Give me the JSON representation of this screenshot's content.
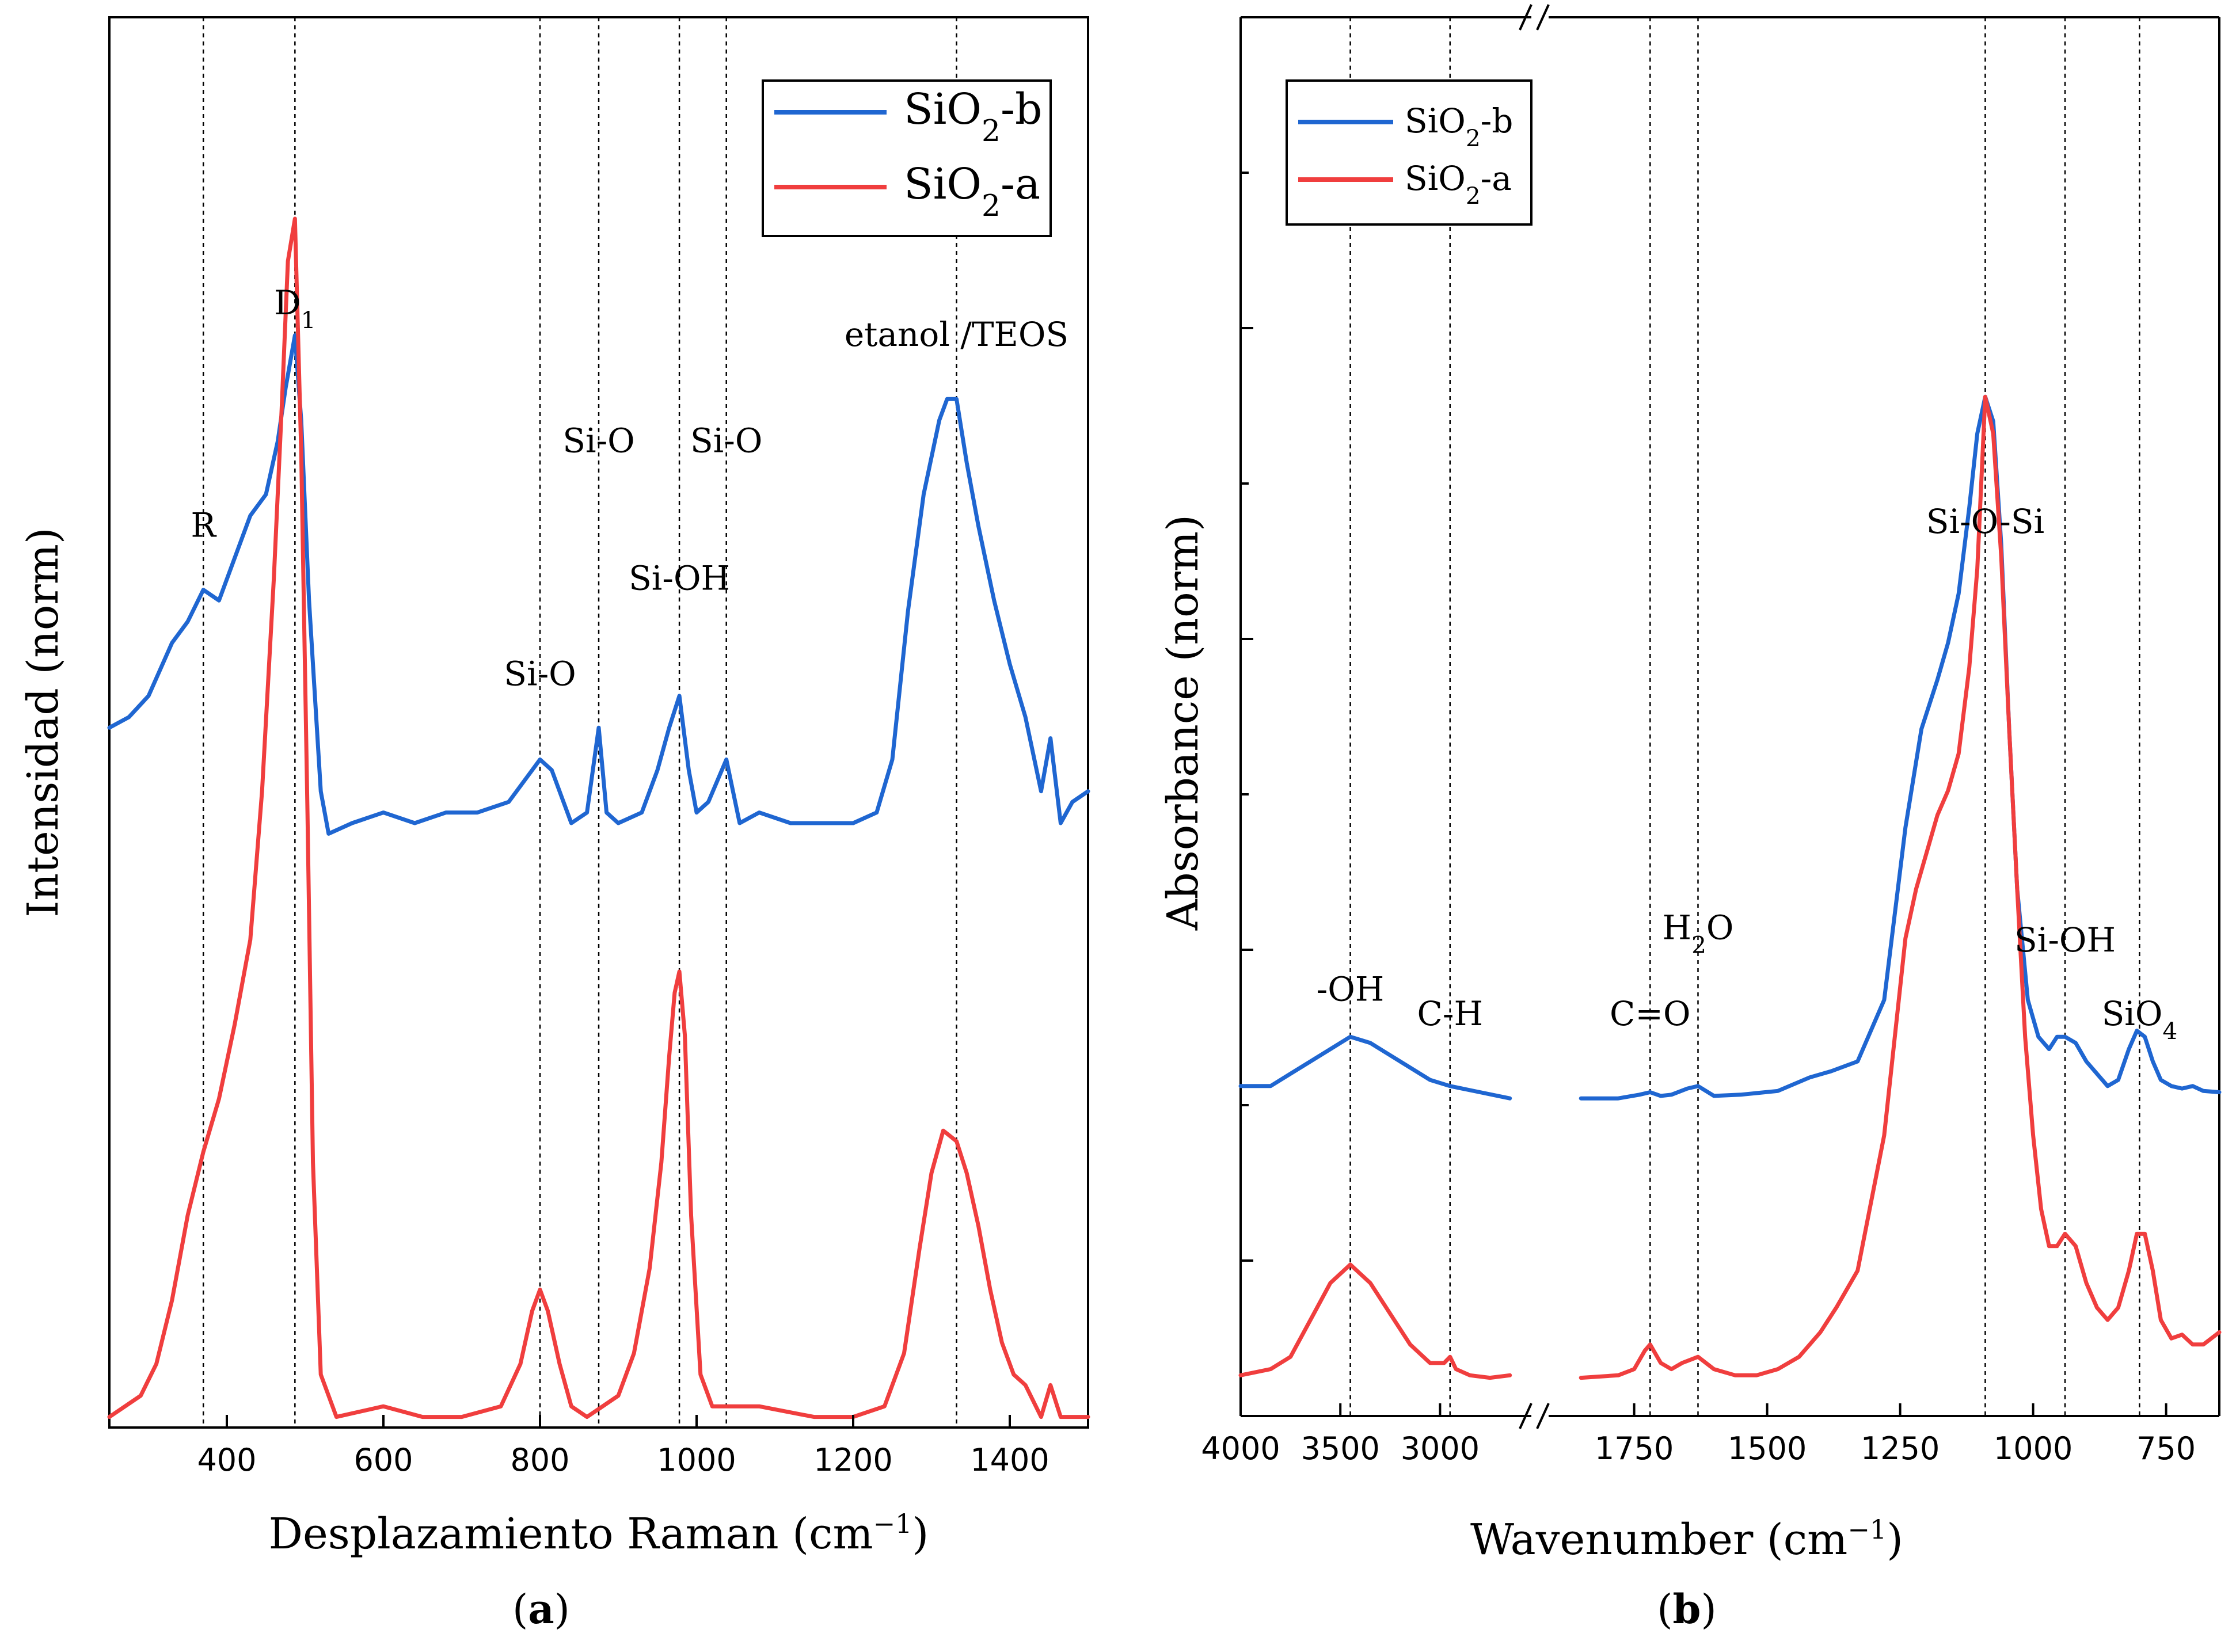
{
  "chart_data": [
    {
      "type": "line",
      "panel": "a",
      "panel_label": "a",
      "xlabel": "Desplazamiento Raman (cm",
      "xlabel_sup": "−1",
      "ylabel": "Intensidad (norm)",
      "xlim": [
        250,
        1500
      ],
      "ylim": [
        0,
        1.33
      ],
      "xticks": [
        400,
        600,
        800,
        1000,
        1200,
        1400
      ],
      "guides": [
        370,
        487,
        800,
        875,
        978,
        1038,
        1332
      ],
      "legend": [
        {
          "base": "SiO",
          "sub": "2",
          "suffix": "-b",
          "color": "#1f66d1"
        },
        {
          "base": "SiO",
          "sub": "2",
          "suffix": "-a",
          "color": "#f03e3e"
        }
      ],
      "annotations": [
        {
          "text": "R",
          "x": 370,
          "y": 0.84
        },
        {
          "text": "D",
          "sub": "1",
          "x": 487,
          "y": 1.05
        },
        {
          "text": "Si-O",
          "x": 800,
          "y": 0.7
        },
        {
          "text": "Si-O",
          "x": 875,
          "y": 0.92
        },
        {
          "text": "Si-OH",
          "x": 978,
          "y": 0.79
        },
        {
          "text": "Si-O",
          "x": 1038,
          "y": 0.92
        },
        {
          "text": "etanol /TEOS",
          "x": 1332,
          "y": 1.02
        }
      ],
      "series": [
        {
          "name": "SiO2-b",
          "color": "#1f66d1",
          "x": [
            250,
            275,
            300,
            330,
            350,
            370,
            390,
            410,
            430,
            450,
            465,
            475,
            487,
            495,
            505,
            520,
            530,
            560,
            600,
            640,
            680,
            720,
            760,
            790,
            800,
            815,
            840,
            860,
            875,
            885,
            900,
            930,
            950,
            965,
            978,
            990,
            1000,
            1015,
            1038,
            1055,
            1080,
            1120,
            1160,
            1200,
            1230,
            1250,
            1270,
            1290,
            1310,
            1320,
            1332,
            1345,
            1360,
            1380,
            1400,
            1420,
            1440,
            1452,
            1465,
            1480,
            1500
          ],
          "y": [
            0.66,
            0.67,
            0.69,
            0.74,
            0.76,
            0.79,
            0.78,
            0.82,
            0.86,
            0.88,
            0.93,
            0.98,
            1.03,
            0.95,
            0.78,
            0.6,
            0.56,
            0.57,
            0.58,
            0.57,
            0.58,
            0.58,
            0.59,
            0.62,
            0.63,
            0.62,
            0.57,
            0.58,
            0.66,
            0.58,
            0.57,
            0.58,
            0.62,
            0.66,
            0.69,
            0.62,
            0.58,
            0.59,
            0.63,
            0.57,
            0.58,
            0.57,
            0.57,
            0.57,
            0.58,
            0.63,
            0.77,
            0.88,
            0.95,
            0.97,
            0.97,
            0.91,
            0.85,
            0.78,
            0.72,
            0.67,
            0.6,
            0.65,
            0.57,
            0.59,
            0.6
          ]
        },
        {
          "name": "SiO2-a",
          "color": "#f03e3e",
          "x": [
            250,
            270,
            290,
            310,
            330,
            350,
            370,
            390,
            410,
            430,
            445,
            460,
            470,
            478,
            487,
            495,
            503,
            510,
            520,
            540,
            600,
            650,
            700,
            750,
            775,
            790,
            800,
            810,
            825,
            840,
            860,
            880,
            900,
            920,
            940,
            955,
            965,
            972,
            978,
            985,
            993,
            1005,
            1020,
            1040,
            1080,
            1150,
            1200,
            1240,
            1265,
            1285,
            1300,
            1315,
            1332,
            1345,
            1360,
            1375,
            1390,
            1405,
            1420,
            1440,
            1452,
            1465,
            1480,
            1500
          ],
          "y": [
            0.01,
            0.02,
            0.03,
            0.06,
            0.12,
            0.2,
            0.26,
            0.31,
            0.38,
            0.46,
            0.6,
            0.8,
            0.96,
            1.1,
            1.14,
            0.92,
            0.58,
            0.25,
            0.05,
            0.01,
            0.02,
            0.01,
            0.01,
            0.02,
            0.06,
            0.11,
            0.13,
            0.11,
            0.06,
            0.02,
            0.01,
            0.02,
            0.03,
            0.07,
            0.15,
            0.25,
            0.35,
            0.41,
            0.43,
            0.37,
            0.2,
            0.05,
            0.02,
            0.02,
            0.02,
            0.01,
            0.01,
            0.02,
            0.07,
            0.17,
            0.24,
            0.28,
            0.27,
            0.24,
            0.19,
            0.13,
            0.08,
            0.05,
            0.04,
            0.01,
            0.04,
            0.01,
            0.01,
            0.01
          ]
        }
      ]
    },
    {
      "type": "line",
      "panel": "b",
      "panel_label": "b",
      "xlabel": "Wavenumber (cm",
      "xlabel_sup": "−1",
      "ylabel": "Absorbance (norm)",
      "x_reversed": true,
      "broken_axis": {
        "left_segment": [
          4000,
          2600
        ],
        "right_segment": [
          1900,
          650
        ]
      },
      "ylim": [
        0,
        1.0
      ],
      "xticks": [
        4000,
        3500,
        3000,
        1750,
        1500,
        1250,
        1000,
        750
      ],
      "guides": [
        3450,
        2950,
        1720,
        1630,
        1090,
        940,
        800
      ],
      "legend": [
        {
          "base": "SiO",
          "sub": "2",
          "suffix": "-b",
          "color": "#1f66d1"
        },
        {
          "base": "SiO",
          "sub": "2",
          "suffix": "-a",
          "color": "#f03e3e"
        }
      ],
      "annotations": [
        {
          "text": "-OH",
          "x": 3450,
          "y": 0.3
        },
        {
          "text": "C-H",
          "x": 2950,
          "y": 0.28
        },
        {
          "text": "C=O",
          "x": 1720,
          "y": 0.28
        },
        {
          "text": "H",
          "sub": "2",
          "suffix": "O",
          "x": 1630,
          "y": 0.35
        },
        {
          "text": "Si-O-Si",
          "x": 1090,
          "y": 0.68
        },
        {
          "text": "Si-OH",
          "x": 940,
          "y": 0.34
        },
        {
          "text": "SiO",
          "sub": "4",
          "x": 800,
          "y": 0.28
        }
      ],
      "series": [
        {
          "name": "SiO2-b",
          "color": "#1f66d1",
          "segments": [
            {
              "x": [
                4000,
                3850,
                3750,
                3650,
                3550,
                3450,
                3350,
                3200,
                3050,
                2950,
                2800,
                2650
              ],
              "y": [
                0.24,
                0.24,
                0.25,
                0.26,
                0.27,
                0.28,
                0.275,
                0.26,
                0.245,
                0.24,
                0.235,
                0.23
              ]
            },
            {
              "x": [
                1850,
                1780,
                1740,
                1720,
                1700,
                1680,
                1650,
                1630,
                1600,
                1550,
                1480,
                1420,
                1380,
                1330,
                1280,
                1240,
                1210,
                1180,
                1160,
                1140,
                1120,
                1105,
                1090,
                1075,
                1060,
                1045,
                1030,
                1010,
                990,
                970,
                955,
                940,
                920,
                900,
                880,
                860,
                840,
                820,
                805,
                790,
                775,
                760,
                740,
                720,
                700,
                680,
                650
              ],
              "y": [
                0.23,
                0.23,
                0.233,
                0.235,
                0.232,
                0.233,
                0.238,
                0.24,
                0.232,
                0.233,
                0.236,
                0.247,
                0.252,
                0.26,
                0.31,
                0.45,
                0.53,
                0.57,
                0.6,
                0.64,
                0.71,
                0.77,
                0.8,
                0.78,
                0.68,
                0.53,
                0.4,
                0.31,
                0.28,
                0.27,
                0.28,
                0.28,
                0.275,
                0.26,
                0.25,
                0.24,
                0.245,
                0.27,
                0.285,
                0.28,
                0.26,
                0.245,
                0.24,
                0.238,
                0.24,
                0.236,
                0.235
              ]
            }
          ]
        },
        {
          "name": "SiO2-a",
          "color": "#f03e3e",
          "segments": [
            {
              "x": [
                4000,
                3850,
                3750,
                3650,
                3550,
                3450,
                3350,
                3250,
                3150,
                3050,
                2980,
                2950,
                2920,
                2850,
                2750,
                2650
              ],
              "y": [
                0.005,
                0.01,
                0.02,
                0.05,
                0.08,
                0.095,
                0.08,
                0.055,
                0.03,
                0.015,
                0.015,
                0.02,
                0.01,
                0.005,
                0.003,
                0.005
              ]
            },
            {
              "x": [
                1850,
                1780,
                1750,
                1730,
                1720,
                1700,
                1680,
                1660,
                1630,
                1600,
                1560,
                1520,
                1480,
                1440,
                1400,
                1370,
                1330,
                1280,
                1240,
                1220,
                1200,
                1180,
                1160,
                1140,
                1120,
                1105,
                1090,
                1075,
                1060,
                1045,
                1030,
                1015,
                1000,
                985,
                970,
                955,
                940,
                920,
                900,
                880,
                860,
                840,
                820,
                805,
                790,
                775,
                760,
                740,
                720,
                700,
                680,
                650
              ],
              "y": [
                0.003,
                0.005,
                0.01,
                0.025,
                0.03,
                0.015,
                0.01,
                0.015,
                0.02,
                0.01,
                0.005,
                0.005,
                0.01,
                0.02,
                0.04,
                0.06,
                0.09,
                0.2,
                0.36,
                0.4,
                0.43,
                0.46,
                0.48,
                0.51,
                0.58,
                0.66,
                0.8,
                0.77,
                0.67,
                0.53,
                0.4,
                0.28,
                0.2,
                0.14,
                0.11,
                0.11,
                0.12,
                0.11,
                0.08,
                0.06,
                0.05,
                0.06,
                0.09,
                0.12,
                0.12,
                0.09,
                0.05,
                0.035,
                0.038,
                0.03,
                0.03,
                0.04
              ]
            }
          ]
        }
      ]
    }
  ]
}
